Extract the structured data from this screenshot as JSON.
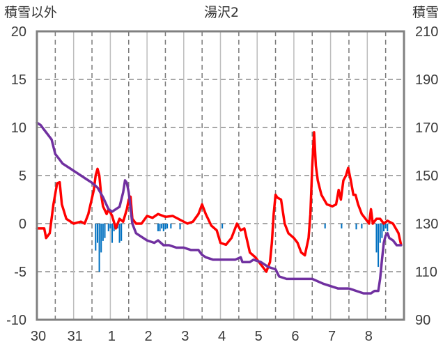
{
  "chart_data": {
    "type": "line",
    "title": "湯沢2",
    "left_axis_label": "積雪以外",
    "right_axis_label": "積雪",
    "x_tick_labels": [
      "30",
      "31",
      "1",
      "2",
      "3",
      "4",
      "5",
      "6",
      "7",
      "8"
    ],
    "x_range_days": [
      -1.5,
      8.5
    ],
    "ylim_left": [
      -10,
      20
    ],
    "left_ticks": [
      "20",
      "15",
      "10",
      "5",
      "0",
      "-5",
      "-10"
    ],
    "ylim_right": [
      90,
      210
    ],
    "right_ticks": [
      "210",
      "190",
      "170",
      "150",
      "130",
      "110",
      "90"
    ],
    "grid": true,
    "colors": {
      "temperature": "#ff0000",
      "snow_depth": "#7030a0",
      "precipitation": "#0070c0",
      "frame": "#808080"
    },
    "series": [
      {
        "key": "temperature",
        "axis": "left",
        "points": [
          [
            -1.5,
            -0.5
          ],
          [
            -1.3,
            -0.5
          ],
          [
            -1.25,
            -1.5
          ],
          [
            -1.15,
            -1.0
          ],
          [
            -1.05,
            2.0
          ],
          [
            -0.95,
            4.2
          ],
          [
            -0.88,
            4.3
          ],
          [
            -0.82,
            2.0
          ],
          [
            -0.7,
            0.5
          ],
          [
            -0.5,
            0.0
          ],
          [
            -0.3,
            0.2
          ],
          [
            -0.2,
            0.0
          ],
          [
            -0.1,
            1.0
          ],
          [
            0.05,
            3.5
          ],
          [
            0.1,
            5.0
          ],
          [
            0.15,
            5.7
          ],
          [
            0.2,
            5.0
          ],
          [
            0.25,
            3.0
          ],
          [
            0.3,
            1.8
          ],
          [
            0.4,
            1.0
          ],
          [
            0.45,
            1.5
          ],
          [
            0.55,
            0.8
          ],
          [
            0.65,
            -0.5
          ],
          [
            0.75,
            0.5
          ],
          [
            0.85,
            0.2
          ],
          [
            0.95,
            1.5
          ],
          [
            1.0,
            2.5
          ],
          [
            1.05,
            2.8
          ],
          [
            1.1,
            0.5
          ],
          [
            1.2,
            0.0
          ],
          [
            1.35,
            0.0
          ],
          [
            1.5,
            0.8
          ],
          [
            1.65,
            0.6
          ],
          [
            1.8,
            1.0
          ],
          [
            2.0,
            0.7
          ],
          [
            2.2,
            0.8
          ],
          [
            2.4,
            0.4
          ],
          [
            2.6,
            0.0
          ],
          [
            2.75,
            0.2
          ],
          [
            2.9,
            1.0
          ],
          [
            3.0,
            2.0
          ],
          [
            3.1,
            1.0
          ],
          [
            3.25,
            -0.2
          ],
          [
            3.4,
            -0.7
          ],
          [
            3.5,
            -2.0
          ],
          [
            3.65,
            -2.2
          ],
          [
            3.8,
            -1.5
          ],
          [
            3.95,
            0.0
          ],
          [
            4.05,
            -0.7
          ],
          [
            4.15,
            -0.5
          ],
          [
            4.3,
            -3.0
          ],
          [
            4.45,
            -3.5
          ],
          [
            4.55,
            -4.0
          ],
          [
            4.65,
            -4.5
          ],
          [
            4.75,
            -5.0
          ],
          [
            4.85,
            -4.0
          ],
          [
            4.9,
            -2.0
          ],
          [
            4.95,
            1.0
          ],
          [
            5.0,
            3.0
          ],
          [
            5.05,
            2.7
          ],
          [
            5.15,
            2.5
          ],
          [
            5.25,
            0.0
          ],
          [
            5.35,
            -1.0
          ],
          [
            5.5,
            -1.5
          ],
          [
            5.6,
            -2.0
          ],
          [
            5.7,
            -3.0
          ],
          [
            5.8,
            -3.3
          ],
          [
            5.9,
            -1.5
          ],
          [
            5.95,
            1.0
          ],
          [
            6.0,
            6.0
          ],
          [
            6.05,
            9.5
          ],
          [
            6.1,
            6.0
          ],
          [
            6.15,
            4.5
          ],
          [
            6.25,
            3.0
          ],
          [
            6.4,
            2.0
          ],
          [
            6.55,
            1.8
          ],
          [
            6.65,
            2.0
          ],
          [
            6.72,
            3.5
          ],
          [
            6.78,
            2.5
          ],
          [
            6.85,
            4.5
          ],
          [
            6.92,
            5.0
          ],
          [
            6.98,
            5.8
          ],
          [
            7.05,
            4.5
          ],
          [
            7.12,
            3.0
          ],
          [
            7.18,
            3.0
          ],
          [
            7.25,
            2.0
          ],
          [
            7.35,
            1.0
          ],
          [
            7.45,
            0.5
          ],
          [
            7.55,
            0.0
          ],
          [
            7.6,
            1.5
          ],
          [
            7.65,
            0.0
          ],
          [
            7.75,
            0.5
          ],
          [
            7.85,
            0.5
          ],
          [
            7.95,
            0.0
          ],
          [
            8.05,
            0.3
          ],
          [
            8.2,
            0.0
          ],
          [
            8.35,
            -1.0
          ],
          [
            8.42,
            -2.2
          ]
        ]
      },
      {
        "key": "snow_depth",
        "axis": "right",
        "points": [
          [
            -1.5,
            172
          ],
          [
            -1.4,
            171
          ],
          [
            -1.3,
            169
          ],
          [
            -1.2,
            167
          ],
          [
            -1.1,
            165
          ],
          [
            -1.0,
            159
          ],
          [
            -0.9,
            157
          ],
          [
            -0.8,
            155
          ],
          [
            -0.6,
            153
          ],
          [
            -0.4,
            151
          ],
          [
            -0.2,
            149
          ],
          [
            0.0,
            147
          ],
          [
            0.15,
            145
          ],
          [
            0.3,
            141
          ],
          [
            0.45,
            136
          ],
          [
            0.55,
            135
          ],
          [
            0.65,
            136
          ],
          [
            0.75,
            137
          ],
          [
            0.8,
            140
          ],
          [
            0.85,
            143
          ],
          [
            0.9,
            148
          ],
          [
            0.95,
            147
          ],
          [
            1.0,
            143
          ],
          [
            1.1,
            130
          ],
          [
            1.2,
            126
          ],
          [
            1.3,
            125
          ],
          [
            1.5,
            123
          ],
          [
            1.7,
            122
          ],
          [
            1.8,
            123
          ],
          [
            1.95,
            121
          ],
          [
            2.1,
            121
          ],
          [
            2.3,
            120
          ],
          [
            2.5,
            120
          ],
          [
            2.7,
            119
          ],
          [
            2.9,
            119
          ],
          [
            3.0,
            117
          ],
          [
            3.1,
            116
          ],
          [
            3.3,
            115
          ],
          [
            3.5,
            115
          ],
          [
            3.7,
            115
          ],
          [
            3.9,
            115
          ],
          [
            4.05,
            116
          ],
          [
            4.1,
            114
          ],
          [
            4.3,
            114
          ],
          [
            4.4,
            115
          ],
          [
            4.6,
            114
          ],
          [
            4.8,
            112
          ],
          [
            5.0,
            111
          ],
          [
            5.1,
            108
          ],
          [
            5.3,
            107
          ],
          [
            5.6,
            107
          ],
          [
            6.0,
            107
          ],
          [
            6.3,
            105
          ],
          [
            6.5,
            104
          ],
          [
            6.7,
            103
          ],
          [
            7.0,
            103
          ],
          [
            7.2,
            102
          ],
          [
            7.4,
            101
          ],
          [
            7.6,
            101
          ],
          [
            7.7,
            102
          ],
          [
            7.8,
            102
          ],
          [
            7.85,
            107
          ],
          [
            7.9,
            115
          ],
          [
            7.95,
            122
          ],
          [
            8.0,
            125
          ],
          [
            8.05,
            126
          ],
          [
            8.1,
            124
          ],
          [
            8.2,
            123
          ],
          [
            8.3,
            121
          ],
          [
            8.42,
            121
          ]
        ]
      },
      {
        "key": "precipitation",
        "axis": "left",
        "type": "bar",
        "bars": [
          [
            0.1,
            -2.8
          ],
          [
            0.15,
            -2.0
          ],
          [
            0.2,
            -5.0
          ],
          [
            0.25,
            -3.0
          ],
          [
            0.3,
            -1.8
          ],
          [
            0.35,
            -1.5
          ],
          [
            0.45,
            -0.8
          ],
          [
            0.5,
            -0.5
          ],
          [
            0.55,
            -2.0
          ],
          [
            0.6,
            -0.8
          ],
          [
            0.7,
            -0.5
          ],
          [
            0.75,
            -2.0
          ],
          [
            0.8,
            -1.8
          ],
          [
            1.8,
            -0.8
          ],
          [
            1.85,
            -0.8
          ],
          [
            1.9,
            -0.5
          ],
          [
            1.95,
            -0.8
          ],
          [
            2.0,
            -0.6
          ],
          [
            2.05,
            -0.5
          ],
          [
            2.15,
            -0.5
          ],
          [
            2.4,
            -0.6
          ],
          [
            3.55,
            -0.5
          ],
          [
            6.35,
            -0.5
          ],
          [
            6.8,
            -0.5
          ],
          [
            7.2,
            -0.6
          ],
          [
            7.35,
            -0.5
          ],
          [
            7.75,
            -3.0
          ],
          [
            7.8,
            -4.5
          ],
          [
            7.85,
            -2.0
          ],
          [
            7.9,
            -1.5
          ],
          [
            7.95,
            -0.8
          ],
          [
            8.0,
            -0.5
          ],
          [
            8.05,
            -0.8
          ]
        ]
      }
    ]
  }
}
